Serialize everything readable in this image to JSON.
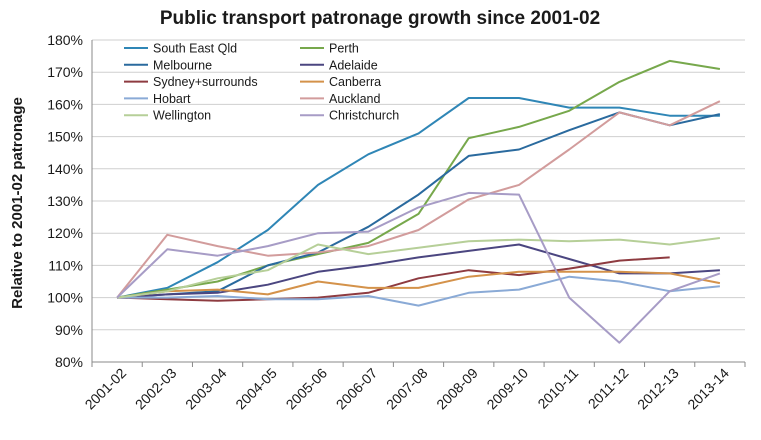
{
  "chart_data": {
    "type": "line",
    "title": "Public transport patronage growth since 2001-02",
    "xlabel": "",
    "ylabel": "Relative to 2001-02 patronage",
    "ylim": [
      80,
      180
    ],
    "yticks": [
      80,
      90,
      100,
      110,
      120,
      130,
      140,
      150,
      160,
      170,
      180
    ],
    "ytick_labels": [
      "80%",
      "90%",
      "100%",
      "110%",
      "120%",
      "130%",
      "140%",
      "150%",
      "160%",
      "170%",
      "180%"
    ],
    "grid": true,
    "legend_position": "top-left",
    "categories": [
      "2001-02",
      "2002-03",
      "2003-04",
      "2004-05",
      "2005-06",
      "2006-07",
      "2007-08",
      "2008-09",
      "2009-10",
      "2010-11",
      "2011-12",
      "2012-13",
      "2013-14"
    ],
    "series": [
      {
        "name": "South East Qld",
        "color": "#2f86b6",
        "values": [
          100,
          103,
          111,
          121,
          135,
          144.5,
          151,
          162,
          162,
          159,
          159,
          156.5,
          156.5
        ]
      },
      {
        "name": "Perth",
        "color": "#77a84c",
        "values": [
          100,
          102.5,
          105,
          110,
          113.5,
          117,
          126,
          149.5,
          153,
          158,
          167,
          173.5,
          171
        ]
      },
      {
        "name": "Melbourne",
        "color": "#2a6a9e",
        "values": [
          100,
          101,
          102,
          110,
          114,
          122,
          132,
          144,
          146,
          152,
          157.5,
          153.5,
          157
        ]
      },
      {
        "name": "Adelaide",
        "color": "#4b4680",
        "values": [
          100,
          101,
          101.5,
          104,
          108,
          110,
          112.5,
          114.5,
          116.5,
          112,
          107.5,
          107.5,
          108.5
        ]
      },
      {
        "name": "Sydney+surrounds",
        "color": "#8e3b40",
        "values": [
          100,
          99.5,
          99,
          99.5,
          100,
          101.5,
          106,
          108.5,
          107,
          109,
          111.5,
          112.5,
          null
        ]
      },
      {
        "name": "Canberra",
        "color": "#d4924a",
        "values": [
          100,
          102,
          102.5,
          101,
          105,
          103,
          103,
          106.5,
          108,
          108,
          108,
          107.5,
          104.5
        ]
      },
      {
        "name": "Hobart",
        "color": "#8aaad6",
        "values": [
          100,
          100,
          100.5,
          99.5,
          99.5,
          100.5,
          97.5,
          101.5,
          102.5,
          106.5,
          105,
          102,
          103.5
        ]
      },
      {
        "name": "Auckland",
        "color": "#d29c9c",
        "values": [
          100,
          119.5,
          116,
          113,
          114,
          116,
          121,
          130.5,
          135,
          146,
          157.5,
          153.5,
          161
        ]
      },
      {
        "name": "Wellington",
        "color": "#b6cf98",
        "values": [
          100,
          102,
          106,
          108.5,
          116.5,
          113.5,
          115.5,
          117.5,
          118,
          117.5,
          118,
          116.5,
          118.5
        ]
      },
      {
        "name": "Christchurch",
        "color": "#a79cc6",
        "values": [
          100,
          115,
          113,
          116,
          120,
          120.5,
          128,
          132.5,
          132,
          100,
          86,
          102,
          107.5
        ]
      }
    ]
  }
}
